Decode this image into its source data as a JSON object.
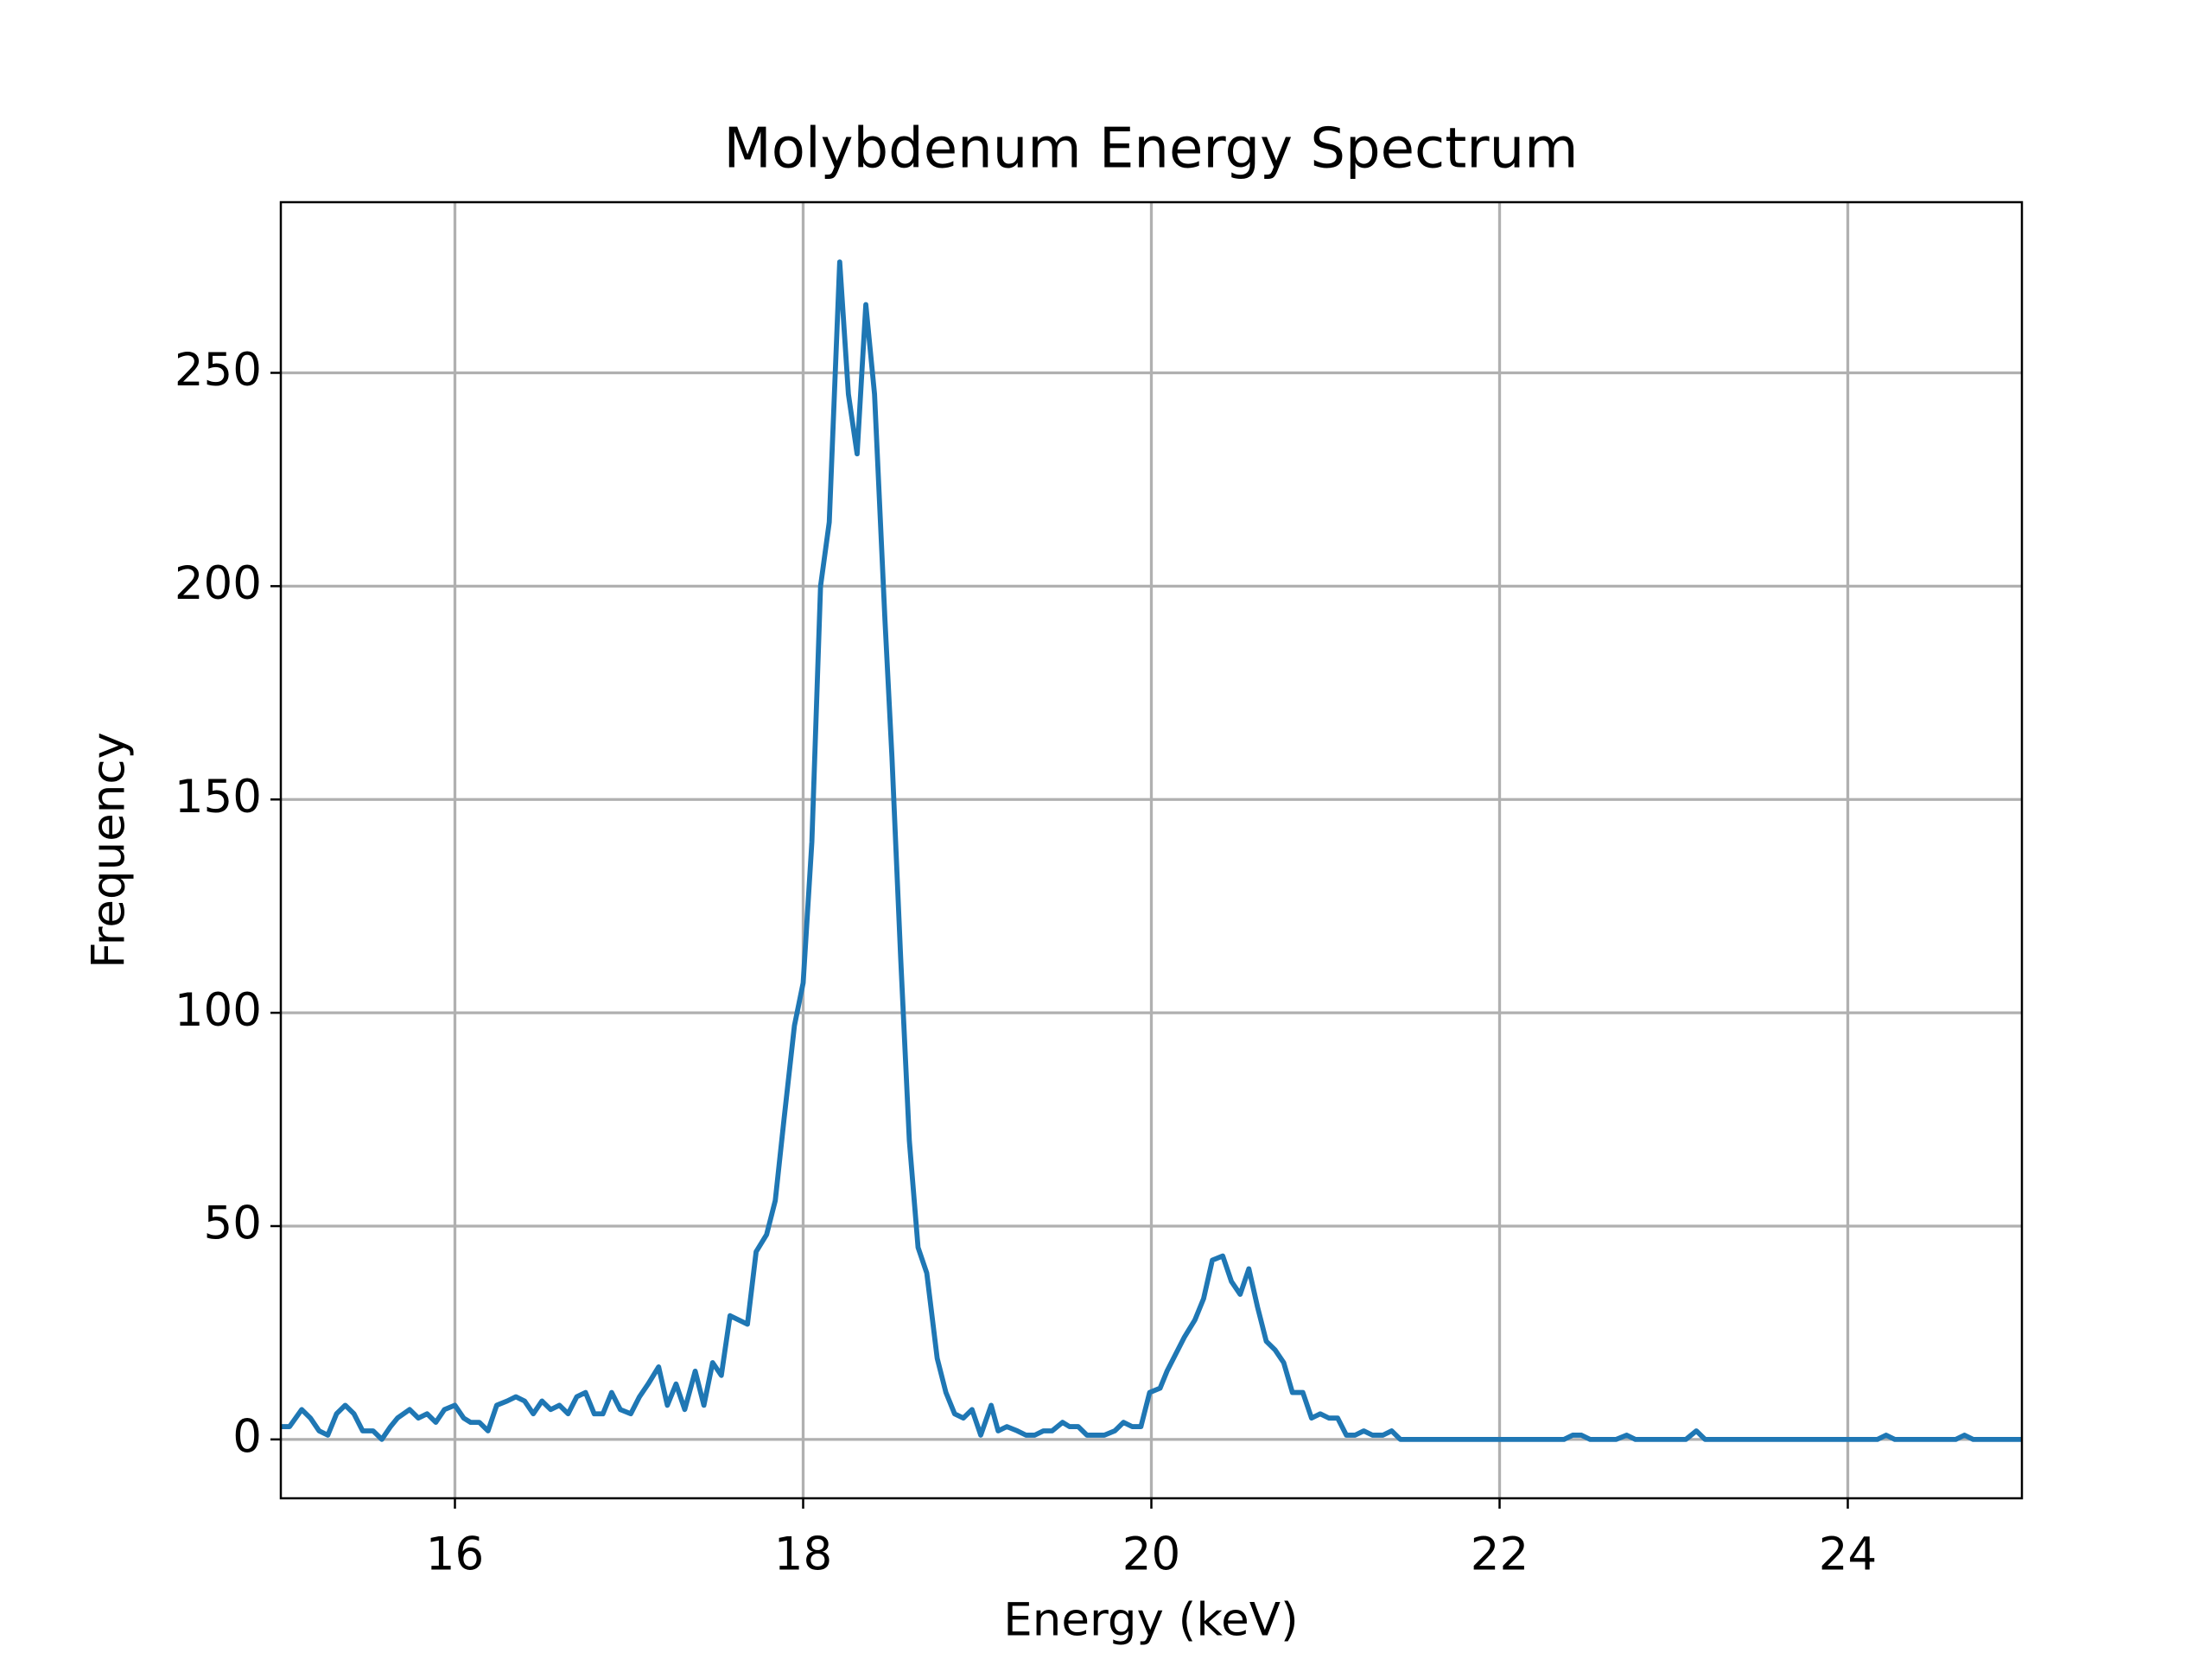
{
  "chart_data": {
    "type": "line",
    "title": "Molybdenum Energy Spectrum",
    "xlabel": "Energy (keV)",
    "ylabel": "Frequency",
    "xlim": [
      15,
      25
    ],
    "ylim": [
      -13.8,
      290
    ],
    "xticks": [
      16,
      18,
      20,
      22,
      24
    ],
    "yticks": [
      0,
      50,
      100,
      150,
      200,
      250
    ],
    "grid": true,
    "x": [
      15.0,
      15.05,
      15.12,
      15.17,
      15.22,
      15.27,
      15.32,
      15.37,
      15.42,
      15.47,
      15.53,
      15.58,
      15.63,
      15.67,
      15.74,
      15.79,
      15.84,
      15.89,
      15.94,
      16.0,
      16.05,
      16.09,
      16.14,
      16.19,
      16.24,
      16.3,
      16.35,
      16.4,
      16.45,
      16.5,
      16.55,
      16.6,
      16.65,
      16.7,
      16.75,
      16.8,
      16.85,
      16.9,
      16.95,
      17.01,
      17.06,
      17.11,
      17.17,
      17.22,
      17.27,
      17.32,
      17.38,
      17.43,
      17.48,
      17.53,
      17.58,
      17.63,
      17.68,
      17.73,
      17.79,
      17.84,
      17.89,
      17.95,
      18.0,
      18.05,
      18.1,
      18.15,
      18.21,
      18.26,
      18.31,
      18.36,
      18.41,
      18.47,
      18.51,
      18.56,
      18.61,
      18.66,
      18.71,
      18.77,
      18.82,
      18.87,
      18.92,
      18.97,
      19.02,
      19.08,
      19.12,
      19.17,
      19.23,
      19.28,
      19.33,
      19.38,
      19.43,
      19.49,
      19.53,
      19.58,
      19.63,
      19.68,
      19.73,
      19.79,
      19.84,
      19.89,
      19.94,
      19.99,
      20.05,
      20.09,
      20.14,
      20.19,
      20.25,
      20.3,
      20.35,
      20.41,
      20.46,
      20.51,
      20.56,
      20.61,
      20.66,
      20.71,
      20.76,
      20.81,
      20.87,
      20.92,
      20.97,
      21.02,
      21.07,
      21.12,
      21.17,
      21.22,
      21.27,
      21.33,
      21.38,
      21.43,
      22.37,
      22.42,
      22.47,
      22.52,
      22.67,
      22.73,
      22.78,
      23.07,
      23.13,
      23.18,
      24.17,
      24.22,
      24.27,
      24.62,
      24.67,
      24.72,
      25.0
    ],
    "series": [
      {
        "name": "Molybdenum",
        "color": "#1f77b4",
        "values": [
          3,
          3,
          7,
          5,
          2,
          1,
          6,
          8,
          6,
          2,
          2,
          0,
          3,
          5,
          7,
          5,
          6,
          4,
          7,
          8,
          5,
          4,
          4,
          2,
          8,
          9,
          10,
          9,
          6,
          9,
          7,
          8,
          6,
          10,
          11,
          6,
          6,
          11,
          7,
          6,
          10,
          13,
          17,
          8,
          13,
          7,
          16,
          8,
          18,
          15,
          29,
          28,
          27,
          44,
          48,
          56,
          75,
          97,
          107,
          140,
          200,
          215,
          276,
          245,
          231,
          266,
          245,
          192,
          160,
          113,
          70,
          45,
          39,
          19,
          11,
          6,
          5,
          7,
          1,
          8,
          2,
          3,
          2,
          1,
          1,
          2,
          2,
          4,
          3,
          3,
          1,
          1,
          1,
          2,
          4,
          3,
          3,
          11,
          12,
          16,
          20,
          24,
          28,
          33,
          42,
          43,
          37,
          34,
          40,
          31,
          23,
          21,
          18,
          11,
          11,
          5,
          6,
          5,
          5,
          1,
          1,
          2,
          1,
          1,
          2,
          0,
          0,
          1,
          1,
          0,
          0,
          1,
          0,
          0,
          2,
          0,
          0,
          1,
          0,
          0,
          1,
          0,
          0
        ]
      }
    ]
  }
}
